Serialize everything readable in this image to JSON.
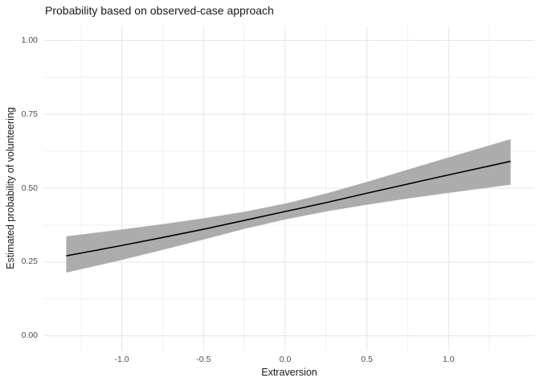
{
  "title": "Probability based on observed-case approach",
  "axes": {
    "x": {
      "label": "Extraversion",
      "ticks": [
        "-1.0",
        "-0.5",
        "0.0",
        "0.5",
        "1.0"
      ],
      "tick_values": [
        -1.0,
        -0.5,
        0.0,
        0.5,
        1.0
      ],
      "minor_values": [
        -1.25,
        -0.75,
        -0.25,
        0.25,
        0.75,
        1.25
      ]
    },
    "y": {
      "label": "Estimated probability of volunteering",
      "ticks": [
        "0.00",
        "0.25",
        "0.50",
        "0.75",
        "1.00"
      ],
      "tick_values": [
        0.0,
        0.25,
        0.5,
        0.75,
        1.0
      ],
      "minor_values": [
        0.125,
        0.375,
        0.625,
        0.875
      ]
    }
  },
  "colors": {
    "background": "#ffffff",
    "grid_major": "#e5e5e5",
    "grid_minor": "#f0f0f0",
    "ribbon": "#acacac",
    "fit_line": "#000000",
    "axis_text": "#4d4d4d",
    "title_text": "#1a1a1a"
  },
  "chart_data": {
    "type": "line",
    "title": "Probability based on observed-case approach",
    "xlabel": "Extraversion",
    "ylabel": "Estimated probability of volunteering",
    "xlim": [
      -1.475,
      1.525
    ],
    "ylim": [
      -0.05,
      1.05
    ],
    "grid": "major+minor",
    "legend": "none",
    "x": [
      -1.34,
      -1.0,
      -0.75,
      -0.5,
      -0.25,
      0.0,
      0.25,
      0.5,
      0.75,
      1.0,
      1.38
    ],
    "series": [
      {
        "name": "fitted_probability",
        "style": "solid_black_line",
        "values": [
          0.271,
          0.306,
          0.333,
          0.361,
          0.391,
          0.421,
          0.451,
          0.483,
          0.514,
          0.545,
          0.591
        ]
      },
      {
        "name": "ci_lower",
        "style": "ribbon_bound",
        "values": [
          0.214,
          0.257,
          0.291,
          0.326,
          0.362,
          0.394,
          0.421,
          0.444,
          0.465,
          0.484,
          0.512
        ]
      },
      {
        "name": "ci_upper",
        "style": "ribbon_bound",
        "values": [
          0.337,
          0.36,
          0.378,
          0.398,
          0.42,
          0.448,
          0.482,
          0.521,
          0.563,
          0.604,
          0.666
        ]
      }
    ]
  }
}
